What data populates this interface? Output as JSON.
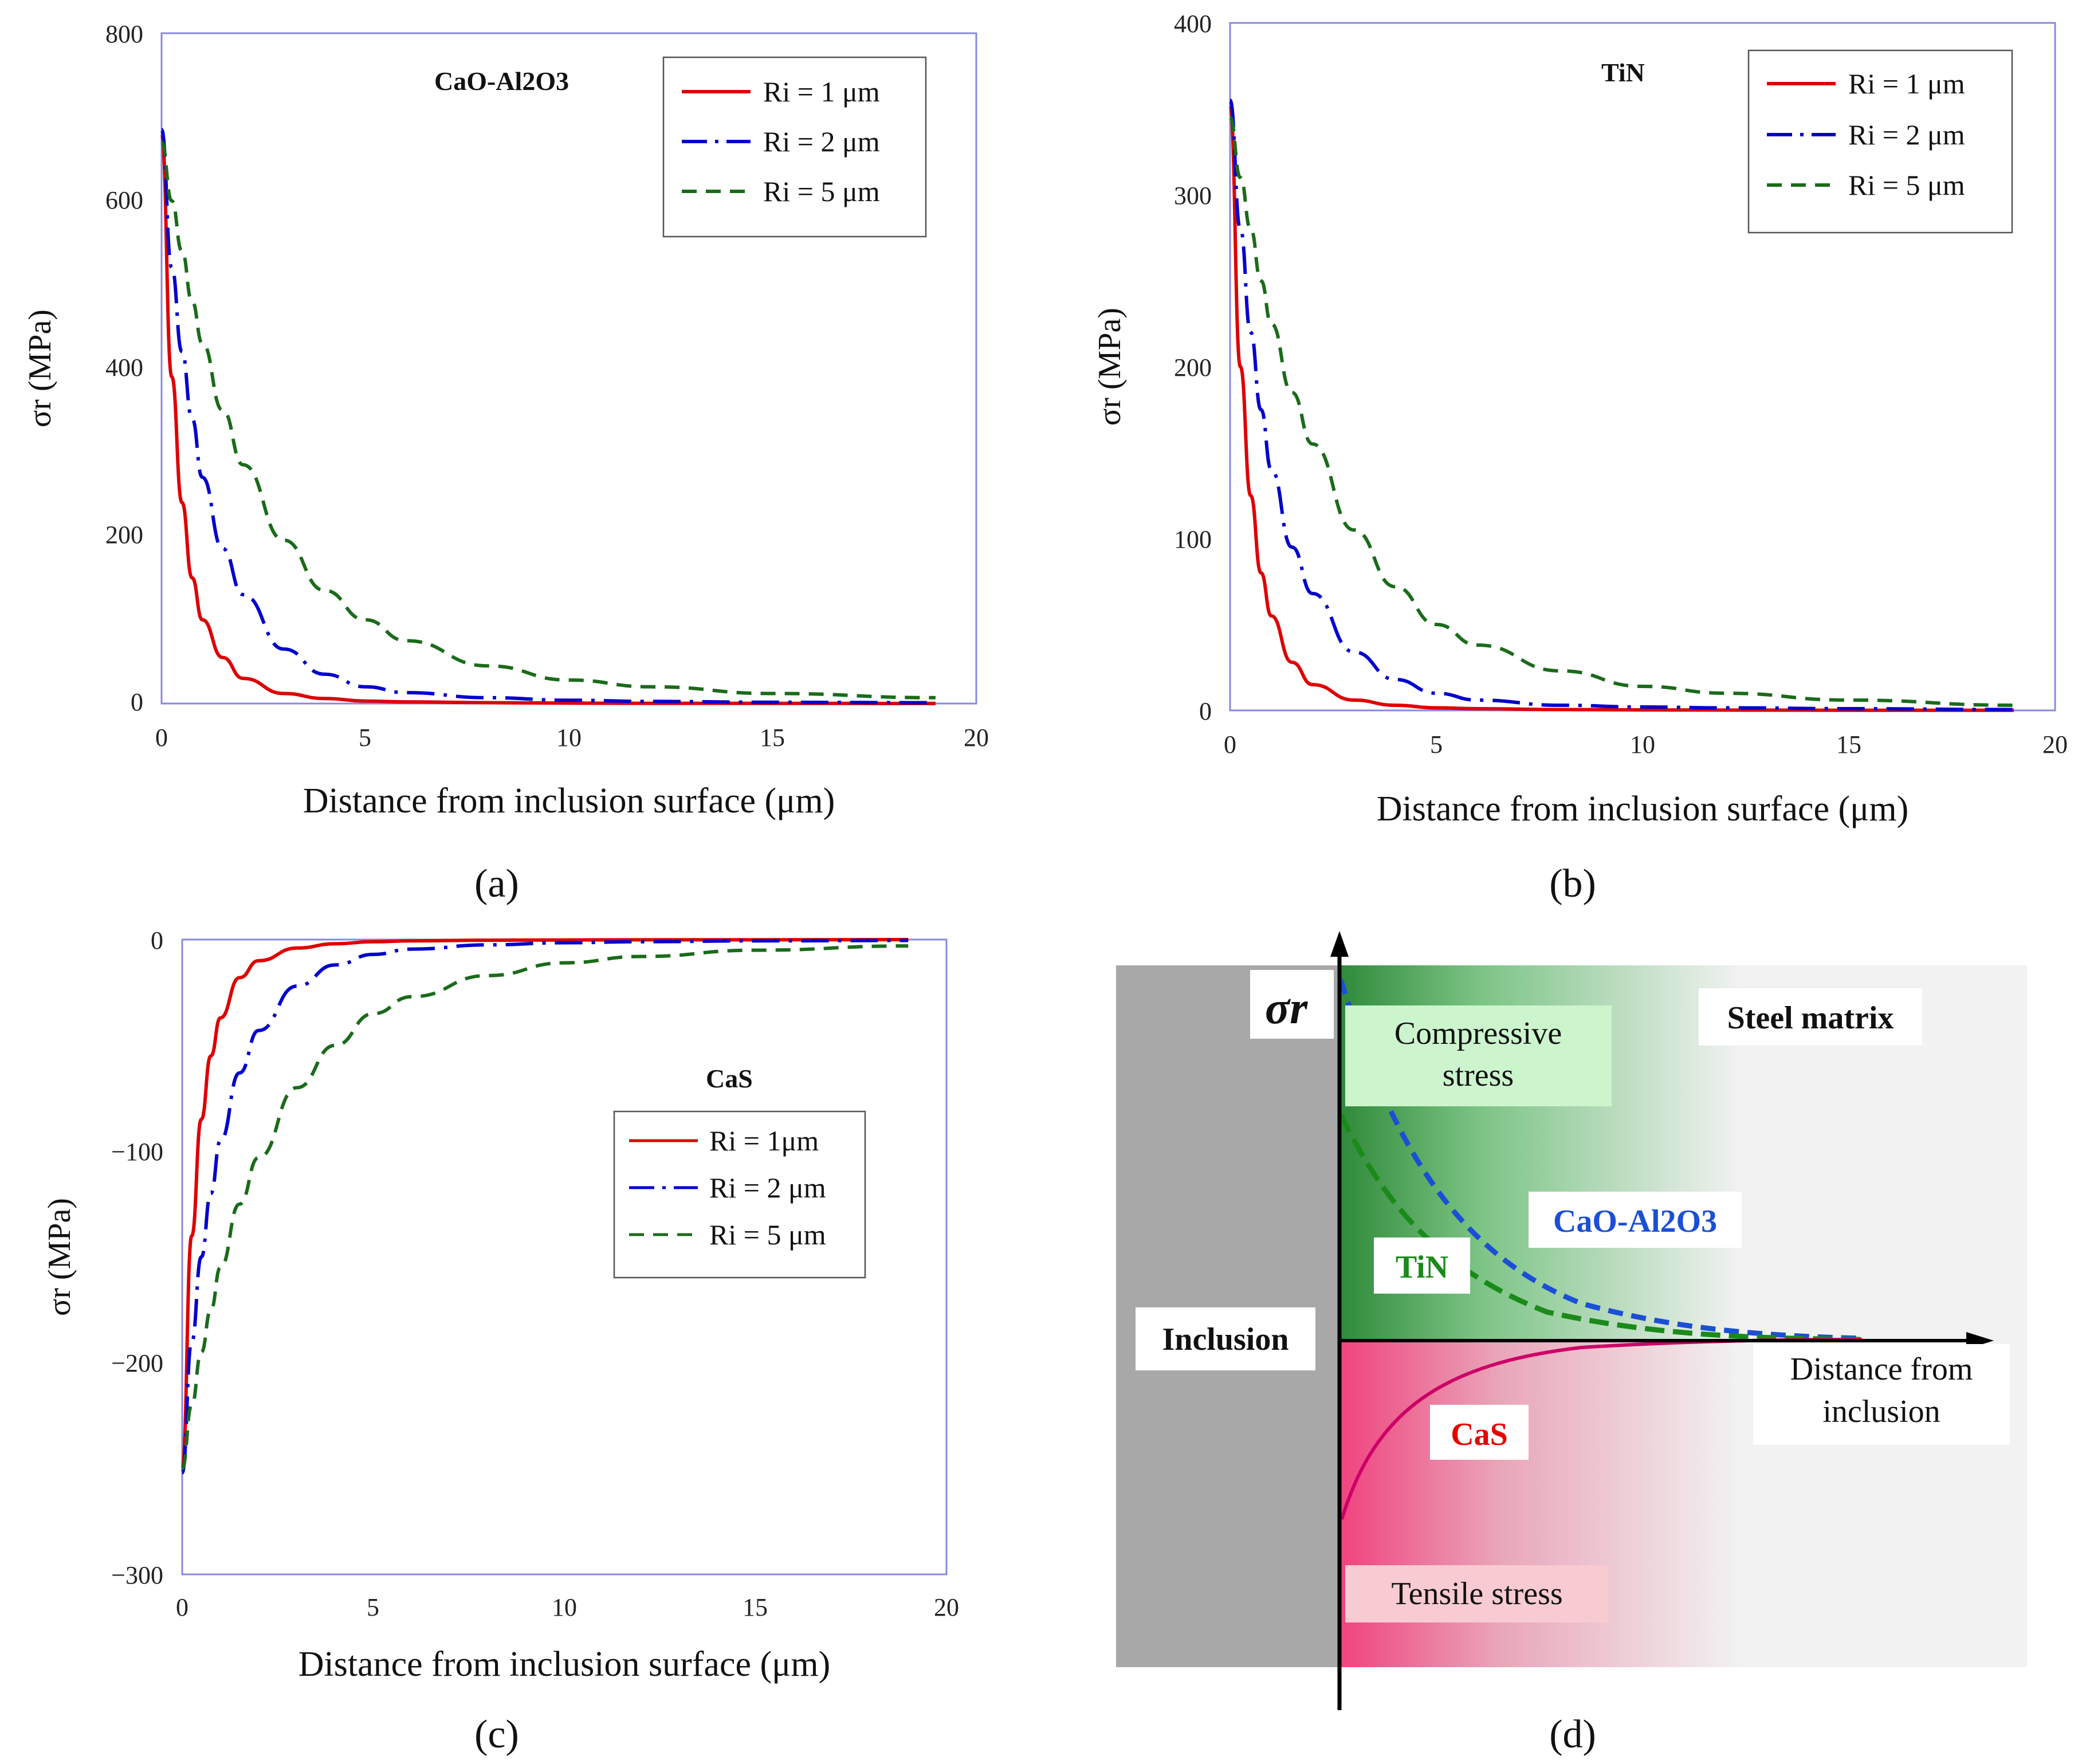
{
  "chart_data": [
    {
      "id": "a",
      "type": "line",
      "panel_label": "(a)",
      "material_label": "CaO-Al2O3",
      "xlabel": "Distance from inclusion surface   (μm)",
      "ylabel": "σr  (MPa)",
      "xlim": [
        0,
        20
      ],
      "ylim": [
        0,
        800
      ],
      "xticks": [
        "0",
        "5",
        "10",
        "15",
        "20"
      ],
      "yticks": [
        "0",
        "200",
        "400",
        "600",
        "800"
      ],
      "legend": [
        "Ri = 1 μm",
        "Ri = 2 μm",
        "Ri = 5 μm"
      ],
      "x": [
        0,
        0.25,
        0.5,
        0.75,
        1,
        1.5,
        2,
        3,
        4,
        5,
        6,
        8,
        10,
        12,
        15,
        19
      ],
      "series": [
        {
          "name": "Ri = 1 μm",
          "color": "#dd0000",
          "dash": "solid",
          "values": [
            680,
            390,
            240,
            150,
            100,
            55,
            30,
            12,
            6,
            3,
            2,
            1,
            0.5,
            0.3,
            0.2,
            0.1
          ]
        },
        {
          "name": "Ri = 2 μm",
          "color": "#0000cc",
          "dash": "longdash",
          "values": [
            685,
            520,
            420,
            340,
            270,
            185,
            130,
            65,
            35,
            20,
            13,
            7,
            4,
            2.5,
            1.5,
            1
          ]
        },
        {
          "name": "Ri = 5 μm",
          "color": "#1a6b1a",
          "dash": "dash",
          "values": [
            670,
            600,
            540,
            480,
            430,
            350,
            285,
            195,
            135,
            100,
            75,
            45,
            28,
            20,
            12,
            7
          ]
        }
      ]
    },
    {
      "id": "b",
      "type": "line",
      "panel_label": "(b)",
      "material_label": "TiN",
      "xlabel": "Distance from inclusion surface   (μm)",
      "ylabel": "σr  (MPa)",
      "xlim": [
        0,
        20
      ],
      "ylim": [
        0,
        400
      ],
      "xticks": [
        "0",
        "5",
        "10",
        "15",
        "20"
      ],
      "yticks": [
        "0",
        "100",
        "200",
        "300",
        "400"
      ],
      "legend": [
        "Ri = 1 μm",
        "Ri = 2 μm",
        "Ri = 5 μm"
      ],
      "x": [
        0,
        0.25,
        0.5,
        0.75,
        1,
        1.5,
        2,
        3,
        4,
        5,
        6,
        8,
        10,
        12,
        15,
        19
      ],
      "series": [
        {
          "name": "Ri = 1 μm",
          "color": "#dd0000",
          "dash": "solid",
          "values": [
            352,
            200,
            125,
            80,
            55,
            28,
            15,
            6,
            3,
            1.5,
            1,
            0.5,
            0.3,
            0.2,
            0.1,
            0.1
          ]
        },
        {
          "name": "Ri = 2 μm",
          "color": "#0000cc",
          "dash": "longdash",
          "values": [
            355,
            280,
            220,
            175,
            140,
            95,
            68,
            34,
            18,
            10,
            6,
            3,
            2,
            1.5,
            1,
            0.5
          ]
        },
        {
          "name": "Ri = 5 μm",
          "color": "#1a6b1a",
          "dash": "dash",
          "values": [
            345,
            310,
            280,
            250,
            225,
            185,
            155,
            105,
            72,
            50,
            38,
            23,
            14,
            10,
            6,
            3
          ]
        }
      ]
    },
    {
      "id": "c",
      "type": "line",
      "panel_label": "(c)",
      "material_label": "CaS",
      "xlabel": "Distance from inclusion surface   (μm)",
      "ylabel": "σr  (MPa)",
      "xlim": [
        0,
        20
      ],
      "ylim": [
        -300,
        0
      ],
      "xticks": [
        "0",
        "5",
        "10",
        "15",
        "20"
      ],
      "yticks": [
        "0",
        "−100",
        "−200",
        "−300"
      ],
      "legend": [
        "Ri = 1μm",
        "Ri = 2 μm",
        "Ri = 5 μm"
      ],
      "x": [
        0,
        0.25,
        0.5,
        0.75,
        1,
        1.5,
        2,
        3,
        4,
        5,
        6,
        8,
        10,
        12,
        15,
        19
      ],
      "series": [
        {
          "name": "Ri = 1μm",
          "color": "#dd0000",
          "dash": "solid",
          "values": [
            -250,
            -140,
            -85,
            -55,
            -37,
            -18,
            -10,
            -4,
            -2,
            -1,
            -0.6,
            -0.3,
            -0.2,
            -0.1,
            -0.1,
            0
          ]
        },
        {
          "name": "Ri = 2 μm",
          "color": "#0000cc",
          "dash": "longdash",
          "values": [
            -252,
            -190,
            -150,
            -120,
            -95,
            -63,
            -43,
            -22,
            -12,
            -7,
            -4.5,
            -2.5,
            -1.5,
            -1,
            -0.6,
            -0.4
          ]
        },
        {
          "name": "Ri = 5 μm",
          "color": "#1a6b1a",
          "dash": "dash",
          "values": [
            -250,
            -220,
            -195,
            -175,
            -155,
            -125,
            -103,
            -70,
            -50,
            -35,
            -27,
            -17,
            -11,
            -8,
            -5,
            -3
          ]
        }
      ]
    }
  ],
  "schematic": {
    "panel_label": "(d)",
    "axis_symbol": "σr",
    "compressive_label_1": "Compressive",
    "compressive_label_2": "stress",
    "steel_matrix": "Steel matrix",
    "inclusion": "Inclusion",
    "tensile": "Tensile stress",
    "distance_1": "Distance from",
    "distance_2": "inclusion",
    "curve_cao": "CaO-Al2O3",
    "curve_tin": "TiN",
    "curve_cas": "CaS",
    "colors": {
      "cao": "#1a4fd6",
      "tin": "#1a8a1a",
      "cas": "#cc0066",
      "label_cas": "#e60000"
    }
  }
}
